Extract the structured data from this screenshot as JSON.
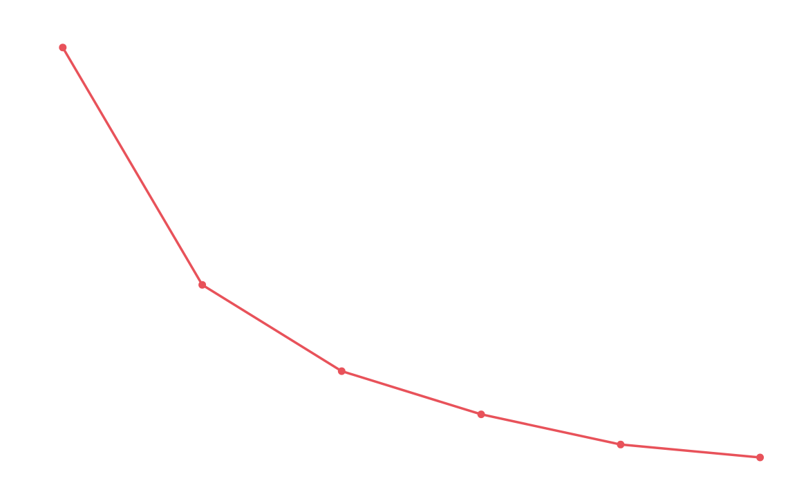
{
  "chart_data": {
    "type": "line",
    "x": [
      1,
      2,
      3,
      4,
      5,
      6
    ],
    "series": [
      {
        "values": [
          100,
          45,
          25,
          15,
          8,
          5
        ],
        "color": "#e8525a"
      }
    ],
    "xlim": [
      0.55,
      6.2
    ],
    "ylim": [
      -3,
      111
    ],
    "markers": true,
    "grid": false,
    "legend": "none"
  }
}
